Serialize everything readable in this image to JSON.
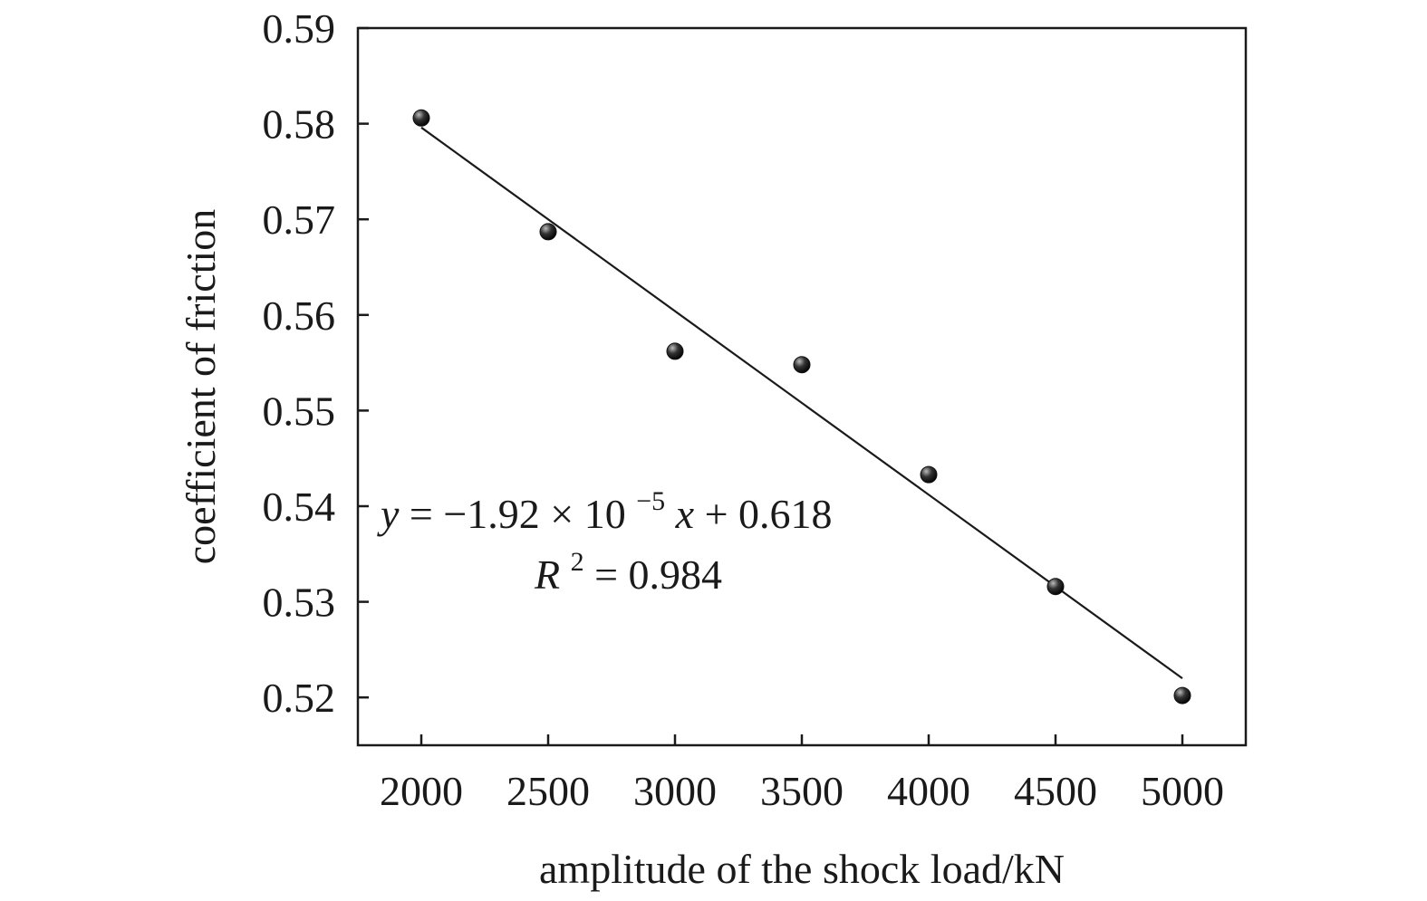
{
  "chart_data": {
    "type": "scatter",
    "title": "",
    "xlabel": "amplitude of the shock load/kN",
    "ylabel": "coefficient of friction",
    "xlim": [
      1750,
      5250
    ],
    "ylim": [
      0.515,
      0.59
    ],
    "x_ticks": [
      2000,
      2500,
      3000,
      3500,
      4000,
      4500,
      5000
    ],
    "x_tick_labels": [
      "2000",
      "2500",
      "3000",
      "3500",
      "4000",
      "4500",
      "5000"
    ],
    "y_ticks": [
      0.52,
      0.53,
      0.54,
      0.55,
      0.56,
      0.57,
      0.58,
      0.59
    ],
    "y_tick_labels": [
      "0.52",
      "0.53",
      "0.54",
      "0.55",
      "0.56",
      "0.57",
      "0.58",
      "0.59"
    ],
    "grid": false,
    "legend": "none",
    "series": [
      {
        "x": [
          2000,
          2500,
          3000,
          3500,
          4000,
          4500,
          5000
        ],
        "y": [
          0.5806,
          0.5687,
          0.5562,
          0.5548,
          0.5433,
          0.5316,
          0.5202
        ]
      }
    ],
    "fit_line": {
      "slope": -1.92e-05,
      "intercept": 0.618,
      "x_range": [
        2000,
        5000
      ]
    },
    "annotations": {
      "equation": {
        "y_var": "y",
        "eq_main": " = −1.92 × 10",
        "exponent": "−5",
        "x_var": "x",
        "eq_tail": " + 0.618"
      },
      "r_squared": {
        "r_var": "R",
        "r_exp": "2",
        "r_tail": " = 0.984"
      }
    },
    "colors": {
      "axis": "#1a1a1a",
      "marker": "#111111",
      "marker_highlight": "#bbbbbb",
      "fit_line": "#1a1a1a"
    }
  }
}
